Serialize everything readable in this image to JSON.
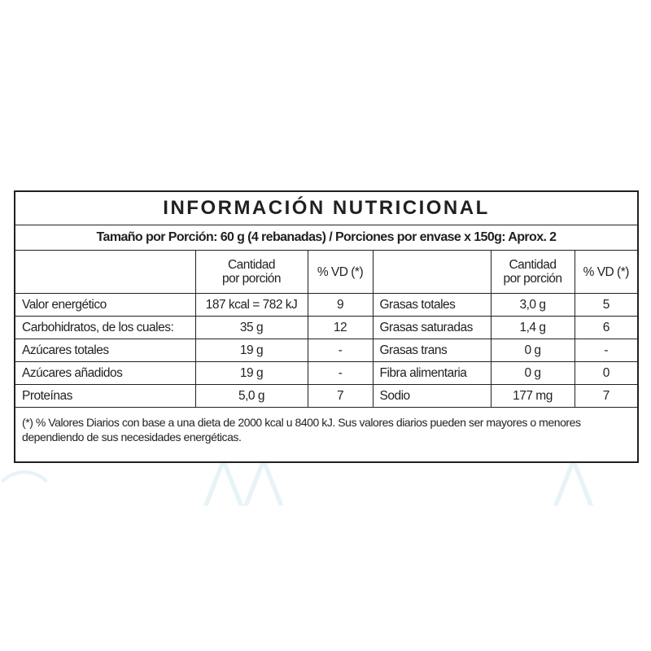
{
  "title": "INFORMACIÓN NUTRICIONAL",
  "serving": "Tamaño por Porción: 60 g (4 rebanadas) / Porciones por envase x 150g: Aprox. 2",
  "headers": {
    "amount_line1": "Cantidad",
    "amount_line2": "por porción",
    "dv": "% VD (*)"
  },
  "rows": [
    {
      "left": {
        "name": "Valor energético",
        "amount": "187 kcal = 782 kJ",
        "dv": "9"
      },
      "right": {
        "name": "Grasas totales",
        "amount": "3,0 g",
        "dv": "5"
      }
    },
    {
      "left": {
        "name": "Carbohidratos, de los cuales:",
        "amount": "35 g",
        "dv": "12"
      },
      "right": {
        "name": "Grasas saturadas",
        "amount": "1,4 g",
        "dv": "6"
      }
    },
    {
      "left": {
        "name": "Azúcares totales",
        "amount": "19 g",
        "dv": "-"
      },
      "right": {
        "name": "Grasas trans",
        "amount": "0 g",
        "dv": "-"
      }
    },
    {
      "left": {
        "name": "Azúcares añadidos",
        "amount": "19 g",
        "dv": "-"
      },
      "right": {
        "name": "Fibra alimentaria",
        "amount": "0 g",
        "dv": "0"
      }
    },
    {
      "left": {
        "name": "Proteínas",
        "amount": "5,0 g",
        "dv": "7"
      },
      "right": {
        "name": "Sodio",
        "amount": "177 mg",
        "dv": "7"
      }
    }
  ],
  "footnote": "(*) % Valores Diarios con base a una dieta de 2000 kcal u 8400 kJ. Sus valores diarios pueden ser mayores o menores dependiendo de sus necesidades energéticas."
}
